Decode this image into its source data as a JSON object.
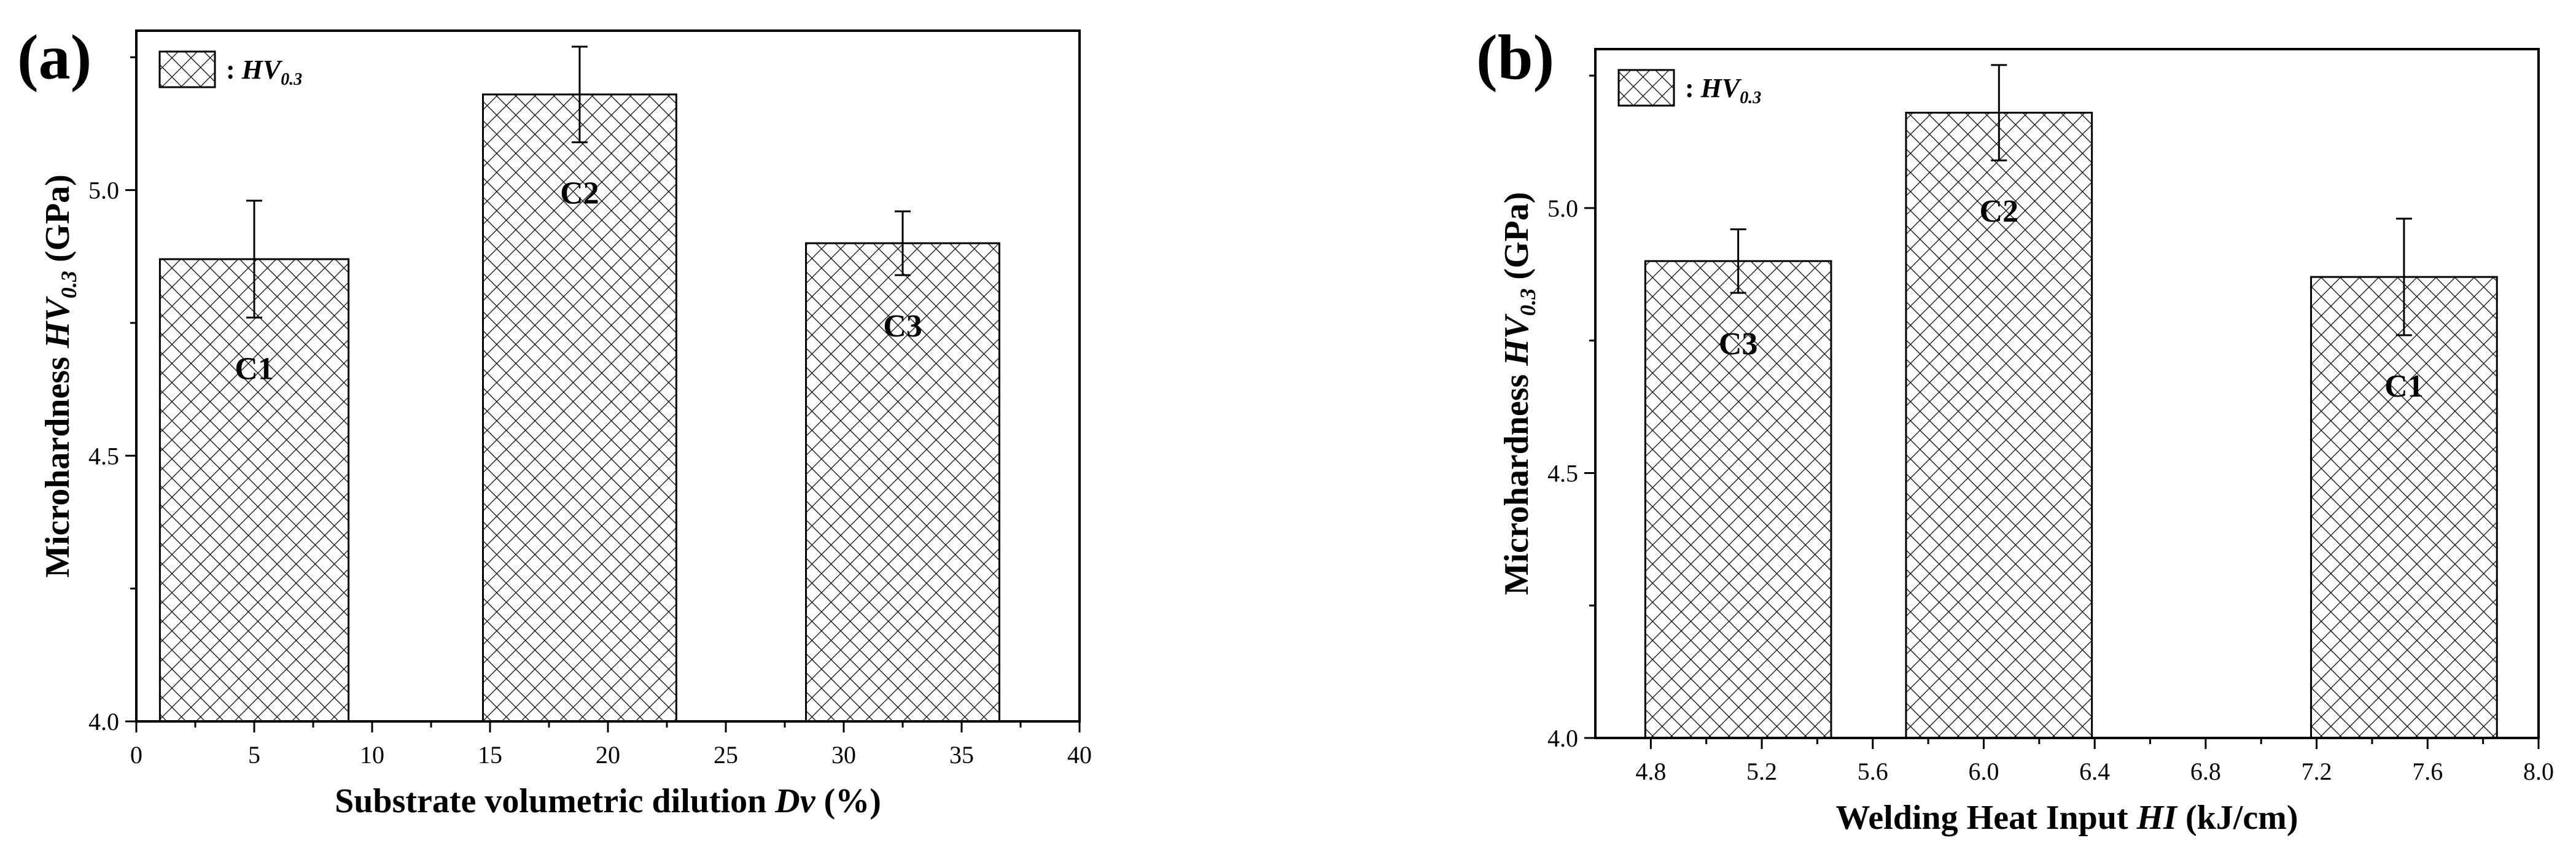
{
  "chart_data": [
    {
      "panel": "(a)",
      "type": "bar",
      "xlabel": "Substrate volumetric dilution Dv (%)",
      "xlabel_parts": [
        "Substrate volumetric dilution ",
        "Dv",
        " (%)"
      ],
      "ylabel_parts": [
        "Microhardness ",
        "HV",
        "0.3",
        " (GPa)"
      ],
      "xlim": [
        0,
        40
      ],
      "ylim": [
        4.0,
        5.3
      ],
      "x_ticks": [
        0,
        5,
        10,
        15,
        20,
        25,
        30,
        35,
        40
      ],
      "x_tick_labels": [
        "0",
        "5",
        "10",
        "15",
        "20",
        "25",
        "30",
        "35",
        "40"
      ],
      "y_ticks": [
        4.0,
        4.5,
        5.0
      ],
      "y_tick_labels": [
        "4.0",
        "4.5",
        "5.0"
      ],
      "legend": {
        "position": "top-left",
        "prefix": ":",
        "label": "HV",
        "subscript": "0.3"
      },
      "bars": [
        {
          "label": "C1",
          "x_from": 1,
          "x_to": 9,
          "value": 4.87,
          "error": 0.11
        },
        {
          "label": "C2",
          "x_from": 14.7,
          "x_to": 22.9,
          "value": 5.18,
          "error": 0.09
        },
        {
          "label": "C3",
          "x_from": 28.4,
          "x_to": 36.6,
          "value": 4.9,
          "error": 0.06
        }
      ],
      "grid": false
    },
    {
      "panel": "(b)",
      "type": "bar",
      "xlabel": "Welding Heat Input HI (kJ/cm)",
      "xlabel_parts": [
        "Welding Heat Input ",
        "HI",
        " (kJ/cm)"
      ],
      "ylabel_parts": [
        "Microhardness ",
        "HV",
        "0.3",
        " (GPa)"
      ],
      "xlim": [
        4.6,
        8.0
      ],
      "ylim": [
        4.0,
        5.3
      ],
      "x_ticks": [
        4.8,
        5.2,
        5.6,
        6.0,
        6.4,
        6.8,
        7.2,
        7.6,
        8.0
      ],
      "x_tick_labels": [
        "4.8",
        "5.2",
        "5.6",
        "6.0",
        "6.4",
        "6.8",
        "7.2",
        "7.6",
        "8.0"
      ],
      "y_ticks": [
        4.0,
        4.5,
        5.0
      ],
      "y_tick_labels": [
        "4.0",
        "4.5",
        "5.0"
      ],
      "legend": {
        "position": "top-left",
        "prefix": ":",
        "label": "HV",
        "subscript": "0.3"
      },
      "bars": [
        {
          "label": "C3",
          "x_from": 4.78,
          "x_to": 5.45,
          "value": 4.9,
          "error": 0.06
        },
        {
          "label": "C2",
          "x_from": 5.72,
          "x_to": 6.39,
          "value": 5.18,
          "error": 0.09
        },
        {
          "label": "C1",
          "x_from": 7.18,
          "x_to": 7.85,
          "value": 4.87,
          "error": 0.11
        }
      ],
      "grid": false
    }
  ]
}
